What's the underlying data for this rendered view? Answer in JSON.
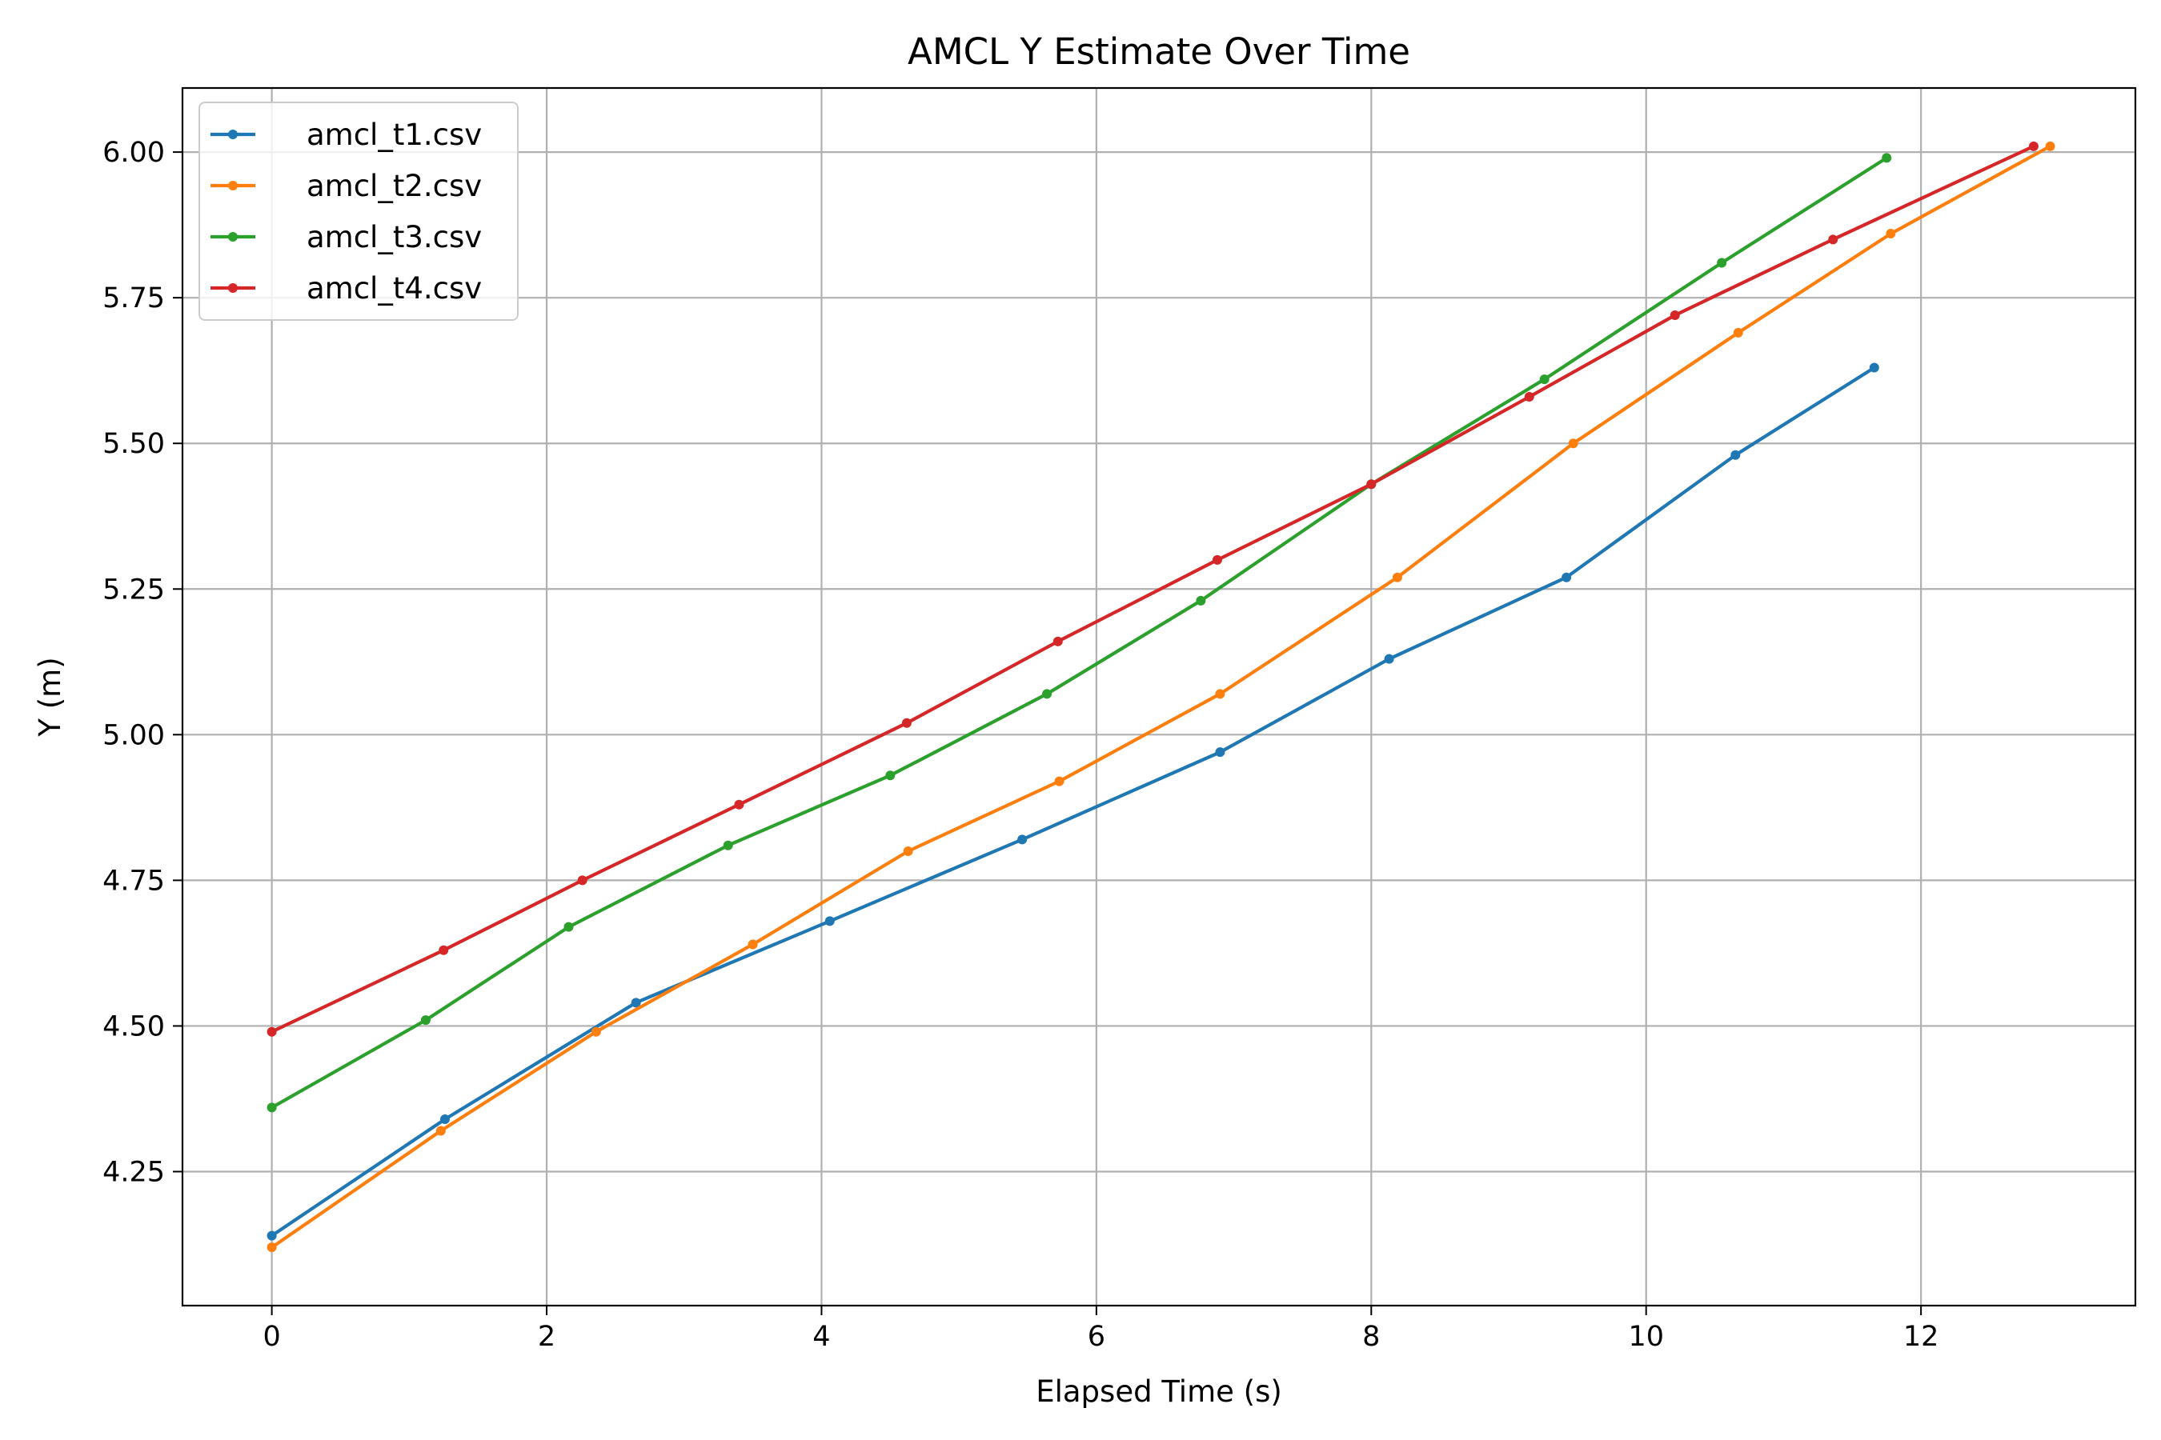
{
  "chart_data": {
    "type": "line",
    "title": "AMCL Y Estimate Over Time",
    "xlabel": "Elapsed Time (s)",
    "ylabel": "Y (m)",
    "xlim": [
      -0.65,
      13.56
    ],
    "ylim": [
      4.02,
      6.11
    ],
    "xticks": [
      0,
      2,
      4,
      6,
      8,
      10,
      12
    ],
    "yticks": [
      4.25,
      4.5,
      4.75,
      5.0,
      5.25,
      5.5,
      5.75,
      6.0
    ],
    "ytick_labels": [
      "4.25",
      "4.50",
      "4.75",
      "5.00",
      "5.25",
      "5.50",
      "5.75",
      "6.00"
    ],
    "grid": true,
    "legend_position": "upper-left",
    "series": [
      {
        "name": "amcl_t1.csv",
        "color": "#1f77b4",
        "x": [
          0,
          1.26,
          2.65,
          4.06,
          5.46,
          6.9,
          8.13,
          9.42,
          10.65,
          11.66
        ],
        "y": [
          4.14,
          4.34,
          4.54,
          4.68,
          4.82,
          4.97,
          5.13,
          5.27,
          5.48,
          5.63
        ]
      },
      {
        "name": "amcl_t2.csv",
        "color": "#ff7f0e",
        "x": [
          0,
          1.23,
          2.36,
          3.5,
          4.63,
          5.73,
          6.9,
          8.19,
          9.47,
          10.67,
          11.78,
          12.94
        ],
        "y": [
          4.12,
          4.32,
          4.49,
          4.64,
          4.8,
          4.92,
          5.07,
          5.27,
          5.5,
          5.69,
          5.86,
          6.01
        ]
      },
      {
        "name": "amcl_t3.csv",
        "color": "#2ca02c",
        "x": [
          0,
          1.12,
          2.16,
          3.32,
          4.5,
          5.64,
          6.76,
          8.0,
          9.26,
          10.55,
          11.75
        ],
        "y": [
          4.36,
          4.51,
          4.67,
          4.81,
          4.93,
          5.07,
          5.23,
          5.43,
          5.61,
          5.81,
          5.99
        ]
      },
      {
        "name": "amcl_t4.csv",
        "color": "#d62728",
        "x": [
          0,
          1.25,
          2.26,
          3.4,
          4.62,
          5.72,
          6.88,
          8.0,
          9.15,
          10.21,
          11.36,
          12.82
        ],
        "y": [
          4.49,
          4.63,
          4.75,
          4.88,
          5.02,
          5.16,
          5.3,
          5.43,
          5.58,
          5.72,
          5.85,
          6.01
        ]
      }
    ]
  }
}
